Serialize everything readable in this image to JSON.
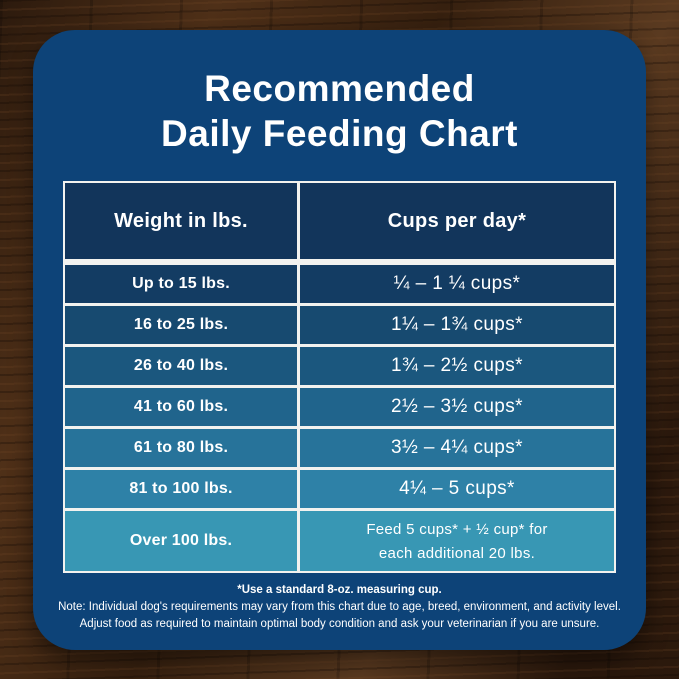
{
  "card": {
    "title_line1": "Recommended",
    "title_line2": "Daily Feeding Chart"
  },
  "table": {
    "headers": {
      "weight": "Weight in lbs.",
      "cups": "Cups per day*"
    },
    "rows": [
      {
        "weight": "Up to 15 lbs.",
        "cups": "¼ – 1 ¼ cups*"
      },
      {
        "weight": "16 to 25 lbs.",
        "cups": "1¼ – 1¾  cups*"
      },
      {
        "weight": "26 to 40 lbs.",
        "cups": "1¾ – 2½ cups*"
      },
      {
        "weight": "41 to 60 lbs.",
        "cups": "2½ – 3½ cups*"
      },
      {
        "weight": "61 to 80 lbs.",
        "cups": "3½ – 4¼ cups*"
      },
      {
        "weight": "81 to 100 lbs.",
        "cups": "4¼ – 5 cups*"
      },
      {
        "weight": "Over 100 lbs.",
        "cups_line1": "Feed 5 cups* + ½ cup* for",
        "cups_line2": "each additional 20 lbs."
      }
    ]
  },
  "footnotes": {
    "measuring_cup": "*Use a standard 8-oz. measuring cup.",
    "note_line1": "Note: Individual dog's requirements may vary from this chart due to age, breed, environment, and activity level.",
    "note_line2": "Adjust food as required to maintain optimal body condition and ask your veterinarian if you are unsure."
  },
  "colors": {
    "card_bg": "#0d4378",
    "table_border": "#f2f2ef",
    "header_bg": "#12355b",
    "row_colors": [
      "#133c63",
      "#174a70",
      "#1b577e",
      "#20648c",
      "#27739a",
      "#2e81a7",
      "#3897b4"
    ],
    "text": "#ffffff"
  },
  "chart_data": {
    "type": "table",
    "title": "Recommended Daily Feeding Chart",
    "columns": [
      "Weight in lbs.",
      "Cups per day*"
    ],
    "rows": [
      [
        "Up to 15 lbs.",
        "¼ – 1 ¼ cups*"
      ],
      [
        "16 to 25 lbs.",
        "1¼ – 1¾ cups*"
      ],
      [
        "26 to 40 lbs.",
        "1¾ – 2½ cups*"
      ],
      [
        "41 to 60 lbs.",
        "2½ – 3½ cups*"
      ],
      [
        "61 to 80 lbs.",
        "3½ – 4¼ cups*"
      ],
      [
        "81 to 100 lbs.",
        "4¼ – 5 cups*"
      ],
      [
        "Over 100 lbs.",
        "Feed 5 cups* + ½ cup* for each additional 20 lbs."
      ]
    ],
    "footnote": "*Use a standard 8-oz. measuring cup."
  }
}
